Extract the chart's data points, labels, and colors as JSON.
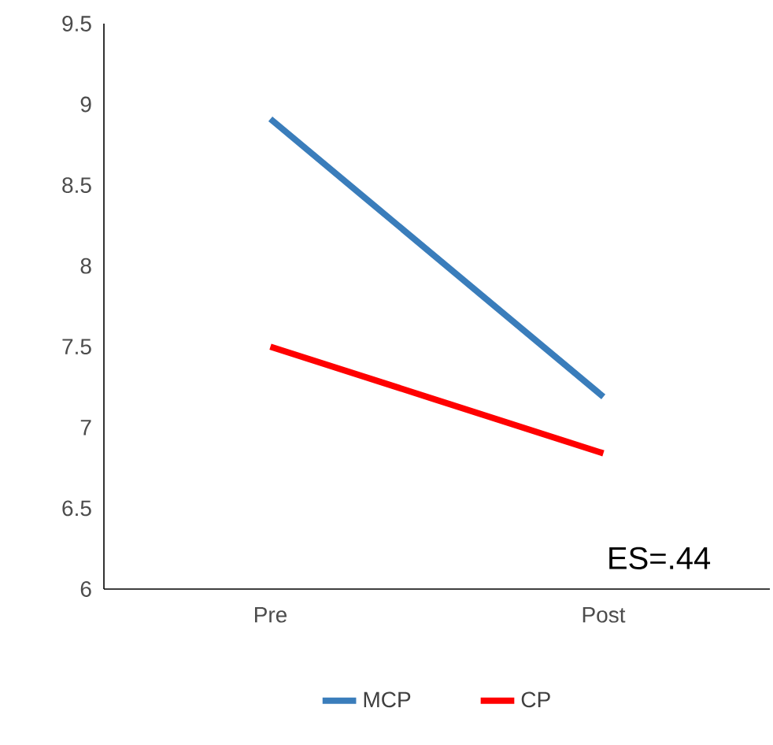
{
  "chart_data": {
    "type": "line",
    "categories": [
      "Pre",
      "Post"
    ],
    "series": [
      {
        "name": "MCP",
        "color": "#3a7dbb",
        "values": [
          8.91,
          7.19
        ]
      },
      {
        "name": "CP",
        "color": "#ff0000",
        "values": [
          7.5,
          6.84
        ]
      }
    ],
    "ylim": [
      6,
      9.5
    ],
    "yticks": [
      6,
      6.5,
      7,
      7.5,
      8,
      8.5,
      9,
      9.5
    ],
    "annotations": [
      "ES=.44"
    ],
    "legend": "bottom",
    "grid": false,
    "marker": "none",
    "line_style": "solid"
  }
}
